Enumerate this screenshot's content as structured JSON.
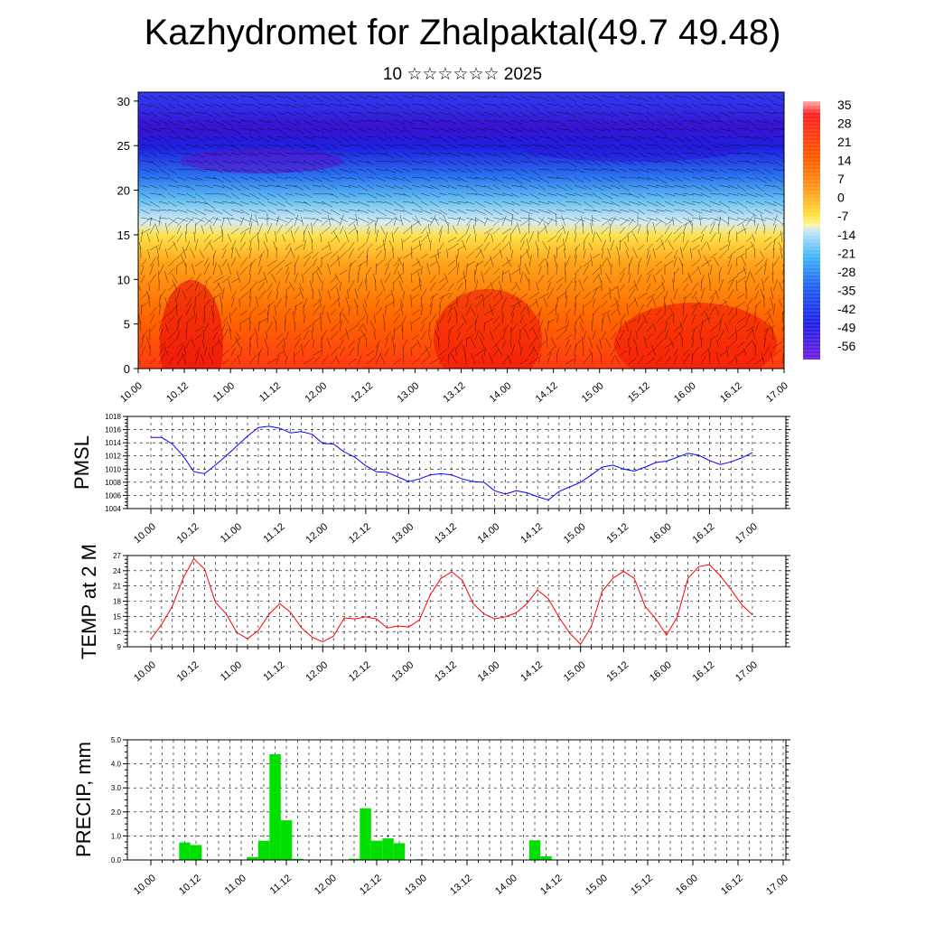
{
  "title": "Kazhydromet for Zhalpaktal(49.7 49.48)",
  "subtitle": "10 ☆☆☆☆☆☆ 2025",
  "time_labels": [
    "10.00",
    "10.12",
    "11.00",
    "11.12",
    "12.00",
    "12.12",
    "13.00",
    "13.12",
    "14.00",
    "14.12",
    "15.00",
    "15.12",
    "16.00",
    "16.12",
    "17.00"
  ],
  "colors": {
    "pmsl_line": "#0000ff",
    "temp_line": "#ff0000",
    "precip_bar": "#00e000",
    "colorbar_top": "#ff0000",
    "colorbar_bottom": "#6a00e0"
  },
  "chart_data": [
    {
      "type": "heatmap",
      "title": "",
      "xlabel": "",
      "ylabel": "",
      "y_ticks": [
        0,
        5,
        10,
        15,
        20,
        25,
        30
      ],
      "ylim": [
        0,
        31
      ],
      "x_tick_labels": [
        "10.00",
        "10.12",
        "11.00",
        "11.12",
        "12.00",
        "12.12",
        "13.00",
        "13.12",
        "14.00",
        "14.12",
        "15.00",
        "15.12",
        "16.00",
        "16.12",
        "17.00"
      ],
      "wind_barbs": true,
      "colorbar": {
        "labels": [
          "35",
          "28",
          "21",
          "14",
          "7",
          "0",
          "-7",
          "-14",
          "-21",
          "-28",
          "-35",
          "-42",
          "-49",
          "-56"
        ],
        "placement": "right"
      }
    },
    {
      "type": "line",
      "ylabel": "PMSL",
      "y_ticks": [
        1004,
        1006,
        1008,
        1010,
        1012,
        1014,
        1016,
        1018
      ],
      "ylim": [
        1004,
        1018
      ],
      "grid": true,
      "x": [
        0,
        3,
        6,
        9,
        12,
        15,
        18,
        21,
        24,
        27,
        30,
        33,
        36,
        39,
        42,
        45,
        48,
        51,
        54,
        57,
        60,
        63,
        66,
        69,
        72,
        75,
        78,
        81,
        84,
        87,
        90,
        93,
        96,
        99,
        102,
        105,
        108,
        111,
        114,
        117,
        120,
        123,
        126,
        129,
        132,
        135,
        138,
        141,
        144,
        147,
        150,
        153,
        156,
        159,
        162,
        165,
        168
      ],
      "series": [
        {
          "values": [
            1014.8,
            1014.8,
            1013.8,
            1012.0,
            1009.6,
            1009.3,
            1010.6,
            1012.0,
            1013.5,
            1015.0,
            1016.3,
            1016.5,
            1016.2,
            1015.5,
            1015.7,
            1015.3,
            1013.9,
            1013.8,
            1012.6,
            1011.8,
            1010.5,
            1009.6,
            1009.5,
            1008.8,
            1008.1,
            1008.5,
            1009.1,
            1009.3,
            1009.1,
            1008.5,
            1008.1,
            1008.0,
            1006.7,
            1006.2,
            1006.7,
            1006.4,
            1005.8,
            1005.3,
            1006.6,
            1007.3,
            1008.0,
            1009.1,
            1010.3,
            1010.6,
            1010.0,
            1009.7,
            1010.3,
            1011.0,
            1011.2,
            1011.8,
            1012.4,
            1012.1,
            1011.3,
            1010.7,
            1011.1,
            1011.7,
            1012.5
          ]
        }
      ]
    },
    {
      "type": "line",
      "ylabel": "TEMP at 2 M",
      "y_ticks": [
        9,
        12,
        15,
        18,
        21,
        24,
        27
      ],
      "ylim": [
        9,
        27
      ],
      "grid": true,
      "x": [
        0,
        3,
        6,
        9,
        12,
        15,
        18,
        21,
        24,
        27,
        30,
        33,
        36,
        39,
        42,
        45,
        48,
        51,
        54,
        57,
        60,
        63,
        66,
        69,
        72,
        75,
        78,
        81,
        84,
        87,
        90,
        93,
        96,
        99,
        102,
        105,
        108,
        111,
        114,
        117,
        120,
        123,
        126,
        129,
        132,
        135,
        138,
        141,
        144,
        147,
        150,
        153,
        156,
        159,
        162,
        165,
        168
      ],
      "series": [
        {
          "values": [
            10.5,
            13.4,
            17.0,
            22.5,
            26.4,
            24.3,
            17.8,
            15.5,
            11.8,
            10.6,
            12.2,
            15.4,
            17.5,
            15.8,
            12.8,
            10.9,
            10.0,
            11.1,
            14.7,
            14.5,
            14.9,
            14.5,
            12.7,
            13.1,
            12.9,
            14.3,
            19.2,
            22.5,
            23.8,
            22.1,
            17.5,
            15.5,
            14.5,
            14.9,
            15.7,
            17.5,
            20.2,
            18.5,
            14.8,
            11.7,
            9.5,
            13.0,
            19.9,
            22.5,
            23.9,
            22.5,
            17.0,
            14.5,
            11.3,
            14.9,
            22.5,
            24.8,
            25.2,
            23.0,
            20.3,
            17.3,
            15.3
          ]
        }
      ]
    },
    {
      "type": "bar",
      "ylabel": "PRECIP, mm",
      "y_tick_labels": [
        "0.0",
        "1.0",
        "2.0",
        "3.0",
        "4.0",
        "5.0"
      ],
      "ylim": [
        0,
        5
      ],
      "grid": true,
      "bar_width_hours": 3,
      "x": [
        9,
        12,
        27,
        30,
        33,
        36,
        39,
        48,
        54,
        57,
        60,
        63,
        66,
        69,
        72,
        102,
        105
      ],
      "values": [
        0.73,
        0.62,
        0.12,
        0.8,
        4.4,
        1.65,
        0.05,
        0.02,
        0.05,
        2.15,
        0.8,
        0.9,
        0.7,
        0.02,
        0.03,
        0.82,
        0.15
      ]
    }
  ]
}
